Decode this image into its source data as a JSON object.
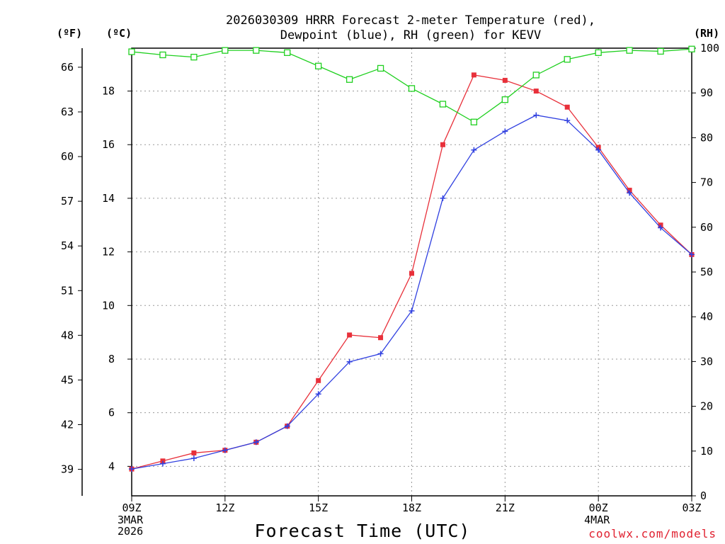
{
  "chart_data": {
    "type": "line",
    "title_line1": "2026030309 HRRR Forecast 2-meter Temperature (red),",
    "title_line2": "Dewpoint (blue), RH (green) for KEVV",
    "unit_f": "(ºF)",
    "unit_c": "(ºC)",
    "unit_rh": "(RH)",
    "xlabel": "Forecast Time (UTC)",
    "credit": "coolwx.com/models",
    "x": [
      0,
      1,
      2,
      3,
      4,
      5,
      6,
      7,
      8,
      9,
      10,
      11,
      12,
      13,
      14,
      15,
      16,
      17,
      18
    ],
    "xlim": [
      0,
      18
    ],
    "x_ticks": [
      {
        "x": 0,
        "label": "09Z",
        "sub1": "3MAR",
        "sub2": "2026"
      },
      {
        "x": 3,
        "label": "12Z",
        "sub1": "",
        "sub2": ""
      },
      {
        "x": 6,
        "label": "15Z",
        "sub1": "",
        "sub2": ""
      },
      {
        "x": 9,
        "label": "18Z",
        "sub1": "",
        "sub2": ""
      },
      {
        "x": 12,
        "label": "21Z",
        "sub1": "",
        "sub2": ""
      },
      {
        "x": 15,
        "label": "00Z",
        "sub1": "4MAR",
        "sub2": ""
      },
      {
        "x": 18,
        "label": "03Z",
        "sub1": "",
        "sub2": ""
      }
    ],
    "ylim_c": [
      2.9,
      19.6
    ],
    "yticks_c": [
      "4",
      "6",
      "8",
      "10",
      "12",
      "14",
      "16",
      "18"
    ],
    "yticks_f": [
      "39",
      "42",
      "45",
      "48",
      "51",
      "54",
      "57",
      "60",
      "63",
      "66"
    ],
    "ylim_rh": [
      0,
      100
    ],
    "yticks_rh": [
      "0",
      "10",
      "20",
      "30",
      "40",
      "50",
      "60",
      "70",
      "80",
      "90",
      "100"
    ],
    "series": [
      {
        "name": "Temperature",
        "color": "#e8303a",
        "marker": "square",
        "values": [
          3.9,
          4.2,
          4.5,
          4.6,
          4.9,
          5.5,
          7.2,
          8.9,
          8.8,
          11.2,
          16.0,
          18.6,
          18.4,
          18.0,
          17.4,
          15.9,
          14.3,
          13.0,
          11.9
        ]
      },
      {
        "name": "Dewpoint",
        "color": "#3040e0",
        "marker": "plus",
        "values": [
          3.9,
          4.1,
          4.3,
          4.6,
          4.9,
          5.5,
          6.7,
          7.9,
          8.2,
          9.8,
          14.0,
          15.8,
          16.5,
          17.1,
          16.9,
          15.8,
          14.2,
          12.9,
          11.9
        ]
      },
      {
        "name": "RH",
        "color": "#20d020",
        "marker": "open-square",
        "axis": "rh",
        "values": [
          99.2,
          98.5,
          98.0,
          99.5,
          99.5,
          99.0,
          96.0,
          93.0,
          95.5,
          91.0,
          87.5,
          83.5,
          88.5,
          94.0,
          97.5,
          99.0,
          99.5,
          99.3,
          99.8
        ]
      }
    ]
  }
}
